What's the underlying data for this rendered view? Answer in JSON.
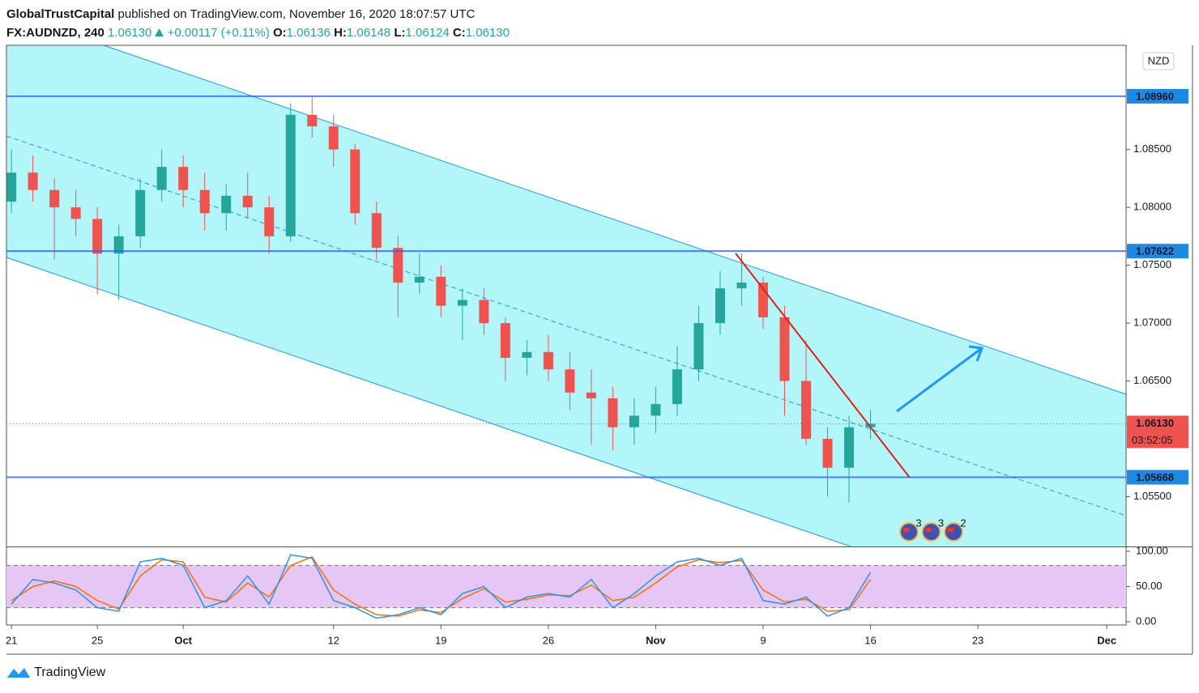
{
  "header": {
    "publisher": "GlobalTrustCapital",
    "published": "published on TradingView.com, November 16, 2020 18:07:57 UTC",
    "symbol": "FX:AUDNZD, 240",
    "last": "1.06130",
    "change": "+0.00117 (+0.11%)",
    "ohlc": [
      {
        "key": "O:",
        "value": "1.06136"
      },
      {
        "key": "H:",
        "value": "1.06148"
      },
      {
        "key": "L:",
        "value": "1.06124"
      },
      {
        "key": "C:",
        "value": "1.06130"
      }
    ]
  },
  "chart_data": [
    {
      "type": "candlestick",
      "currency": "NZD",
      "up_color": "#26a69a",
      "down_color": "#ef5350",
      "x": [
        0,
        1,
        2,
        3,
        4,
        5,
        6,
        7,
        8,
        9,
        10,
        11,
        12,
        13,
        14,
        15,
        16,
        17,
        18,
        19,
        20,
        21,
        22,
        23,
        24,
        25,
        26,
        27,
        28,
        29,
        30,
        31,
        32,
        33,
        34,
        35,
        36,
        37,
        38,
        39,
        40
      ],
      "open": [
        1.0805,
        1.083,
        1.0815,
        1.08,
        1.079,
        1.076,
        1.0775,
        1.0815,
        1.0835,
        1.0815,
        1.0795,
        1.081,
        1.08,
        1.0775,
        1.088,
        1.087,
        1.085,
        1.0795,
        1.0765,
        1.0735,
        1.074,
        1.0715,
        1.072,
        1.07,
        1.067,
        1.0675,
        1.066,
        1.064,
        1.0635,
        1.061,
        1.062,
        1.063,
        1.066,
        1.07,
        1.073,
        1.0735,
        1.0705,
        1.065,
        1.06,
        1.0575,
        1.061
      ],
      "high": [
        1.085,
        1.0845,
        1.0825,
        1.0815,
        1.08,
        1.0785,
        1.0825,
        1.085,
        1.0845,
        1.083,
        1.082,
        1.083,
        1.081,
        1.089,
        1.0895,
        1.088,
        1.0855,
        1.0805,
        1.0775,
        1.076,
        1.075,
        1.073,
        1.073,
        1.0705,
        1.0685,
        1.069,
        1.0675,
        1.066,
        1.0645,
        1.0635,
        1.0645,
        1.068,
        1.0715,
        1.0745,
        1.076,
        1.074,
        1.0715,
        1.0685,
        1.061,
        1.062,
        1.0625
      ],
      "low": [
        1.0795,
        1.0805,
        1.0755,
        1.0775,
        1.0725,
        1.072,
        1.0765,
        1.0805,
        1.08,
        1.078,
        1.078,
        1.079,
        1.076,
        1.077,
        1.086,
        1.0835,
        1.0785,
        1.0755,
        1.0705,
        1.0725,
        1.0705,
        1.0685,
        1.069,
        1.065,
        1.0655,
        1.065,
        1.0625,
        1.0595,
        1.059,
        1.0595,
        1.0605,
        1.062,
        1.065,
        1.069,
        1.0715,
        1.0695,
        1.062,
        1.0595,
        1.055,
        1.0545,
        1.06
      ],
      "close": [
        1.083,
        1.0815,
        1.08,
        1.079,
        1.076,
        1.0775,
        1.0815,
        1.0835,
        1.0815,
        1.0795,
        1.081,
        1.08,
        1.0775,
        1.088,
        1.087,
        1.085,
        1.0795,
        1.0765,
        1.0735,
        1.074,
        1.0715,
        1.072,
        1.07,
        1.067,
        1.0675,
        1.066,
        1.064,
        1.0635,
        1.061,
        1.062,
        1.063,
        1.066,
        1.07,
        1.073,
        1.0735,
        1.0705,
        1.065,
        1.06,
        1.0575,
        1.061,
        1.0613
      ],
      "xlim": [
        -0.23,
        51.9
      ],
      "ylim": [
        1.0507,
        1.094
      ],
      "xticks": [
        {
          "value": 0,
          "label": "21"
        },
        {
          "value": 4,
          "label": "25"
        },
        {
          "value": 8,
          "label": "Oct"
        },
        {
          "value": 15,
          "label": "12"
        },
        {
          "value": 20,
          "label": "19"
        },
        {
          "value": 25,
          "label": "26"
        },
        {
          "value": 30,
          "label": "Nov"
        },
        {
          "value": 35,
          "label": "9"
        },
        {
          "value": 40,
          "label": "16"
        },
        {
          "value": 45,
          "label": "23"
        },
        {
          "value": 51,
          "label": "Dec"
        }
      ],
      "yticks": [
        {
          "value": 1.085,
          "label": "1.08500"
        },
        {
          "value": 1.08,
          "label": "1.08000"
        },
        {
          "value": 1.075,
          "label": "1.07500"
        },
        {
          "value": 1.07,
          "label": "1.07000"
        },
        {
          "value": 1.065,
          "label": "1.06500"
        },
        {
          "value": 1.055,
          "label": "1.05500"
        }
      ],
      "levels": [
        {
          "value": 1.0896,
          "label": "1.08960"
        },
        {
          "value": 1.07622,
          "label": "1.07622"
        },
        {
          "value": 1.05668,
          "label": "1.05668"
        }
      ],
      "last_price": {
        "value": 1.0613,
        "label": "1.06130"
      },
      "countdown": "03:52:05",
      "events": [
        "3",
        "3",
        "2"
      ]
    },
    {
      "type": "line",
      "x": [
        0,
        1,
        2,
        3,
        4,
        5,
        6,
        7,
        8,
        9,
        10,
        11,
        12,
        13,
        14,
        15,
        16,
        17,
        18,
        19,
        20,
        21,
        22,
        23,
        24,
        25,
        26,
        27,
        28,
        29,
        30,
        31,
        32,
        33,
        34,
        35,
        36,
        37,
        38,
        39,
        40
      ],
      "series": [
        {
          "color": "#2196f3",
          "values": [
            25,
            60,
            55,
            45,
            20,
            15,
            85,
            90,
            80,
            20,
            30,
            65,
            25,
            95,
            90,
            30,
            20,
            5,
            10,
            20,
            10,
            40,
            50,
            20,
            35,
            40,
            35,
            60,
            20,
            40,
            65,
            85,
            90,
            80,
            90,
            30,
            25,
            35,
            8,
            20,
            70
          ]
        },
        {
          "color": "#ff6d00",
          "values": [
            30,
            50,
            58,
            50,
            30,
            18,
            65,
            88,
            85,
            35,
            28,
            55,
            35,
            80,
            92,
            45,
            25,
            10,
            8,
            17,
            13,
            33,
            47,
            28,
            32,
            38,
            37,
            52,
            30,
            35,
            55,
            78,
            88,
            84,
            87,
            45,
            28,
            32,
            15,
            17,
            60
          ]
        }
      ],
      "ylim": [
        -4.6,
        105.7
      ],
      "band": [
        20,
        80
      ],
      "band_color": "#e6c6f5",
      "yticks": [
        {
          "value": 100,
          "label": "100.00"
        },
        {
          "value": 50,
          "label": "50.00"
        },
        {
          "value": 0,
          "label": "0.00"
        }
      ]
    }
  ],
  "footer": {
    "brand": "TradingView"
  }
}
